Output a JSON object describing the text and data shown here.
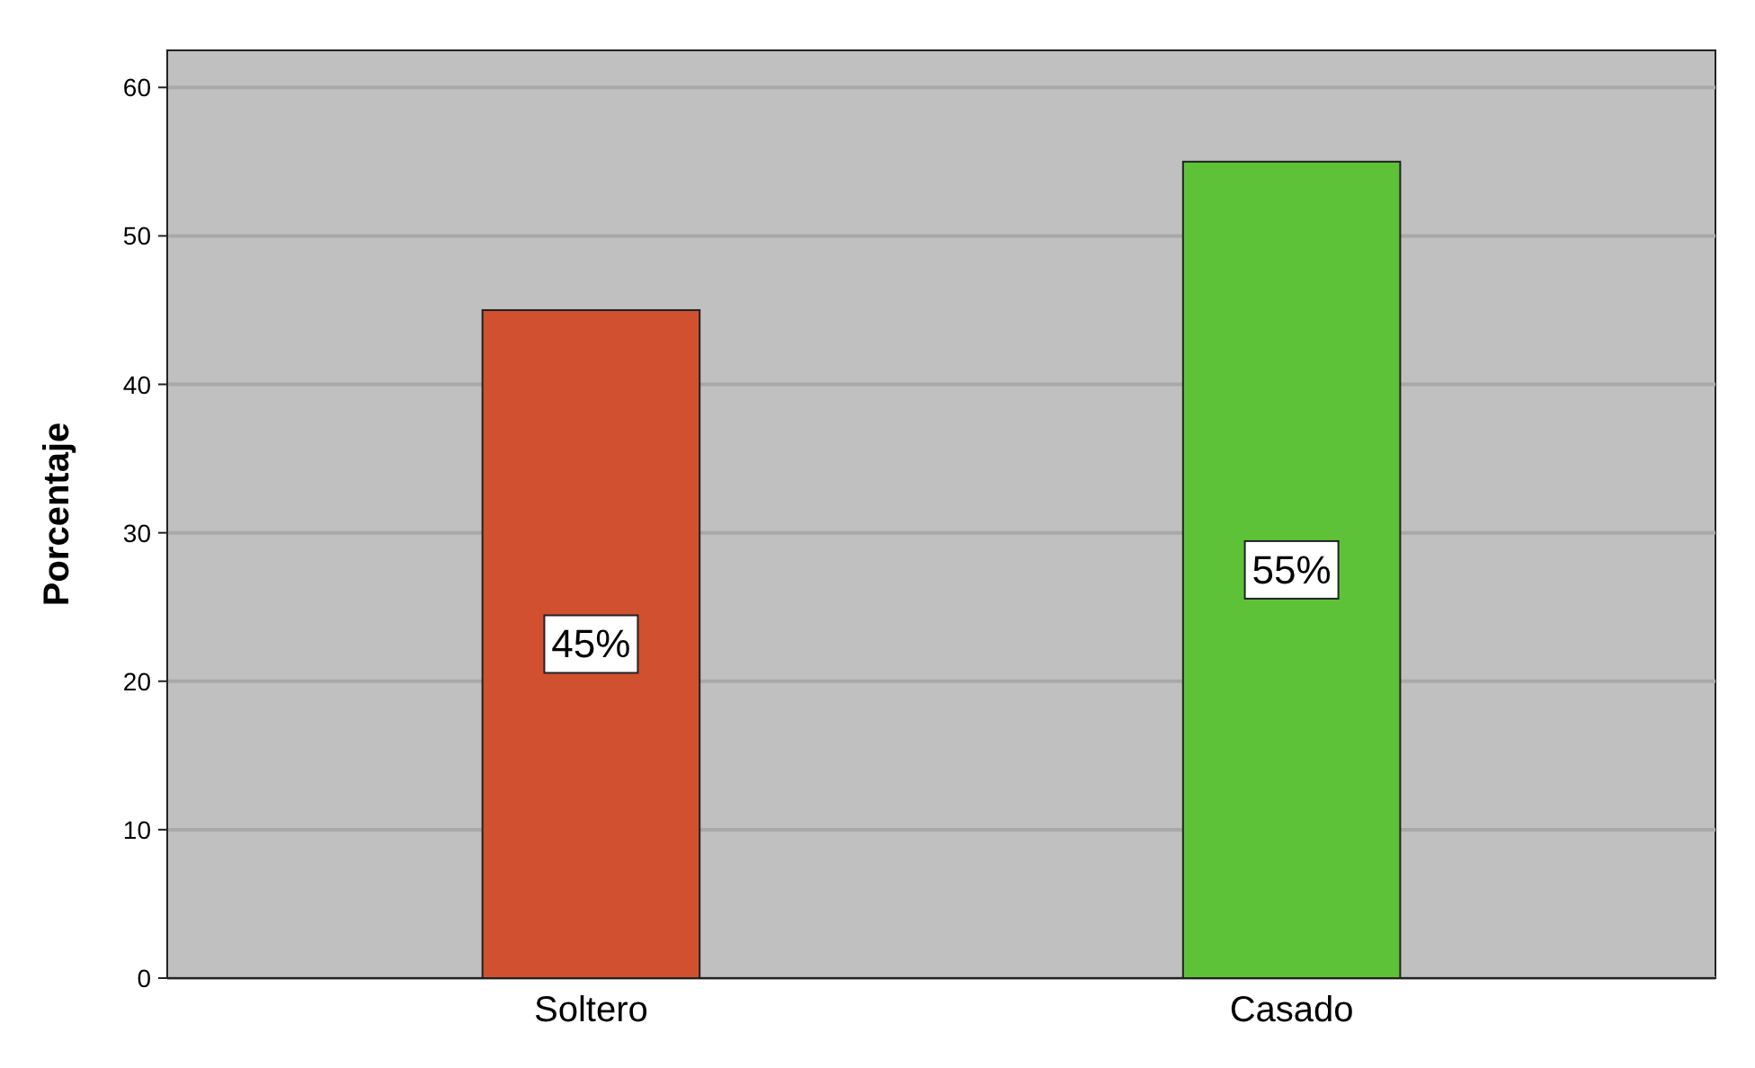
{
  "chart_data": {
    "type": "bar",
    "ylabel": "Porcentaje",
    "categories": [
      "Soltero",
      "Casado"
    ],
    "values": [
      45,
      55
    ],
    "colors": [
      "#d05030",
      "#5ec238"
    ],
    "value_labels": [
      "45%",
      "55%"
    ],
    "ylim": [
      0,
      62.5
    ],
    "yticks": [
      0,
      10,
      20,
      30,
      40,
      50,
      60
    ],
    "grid": "y"
  }
}
